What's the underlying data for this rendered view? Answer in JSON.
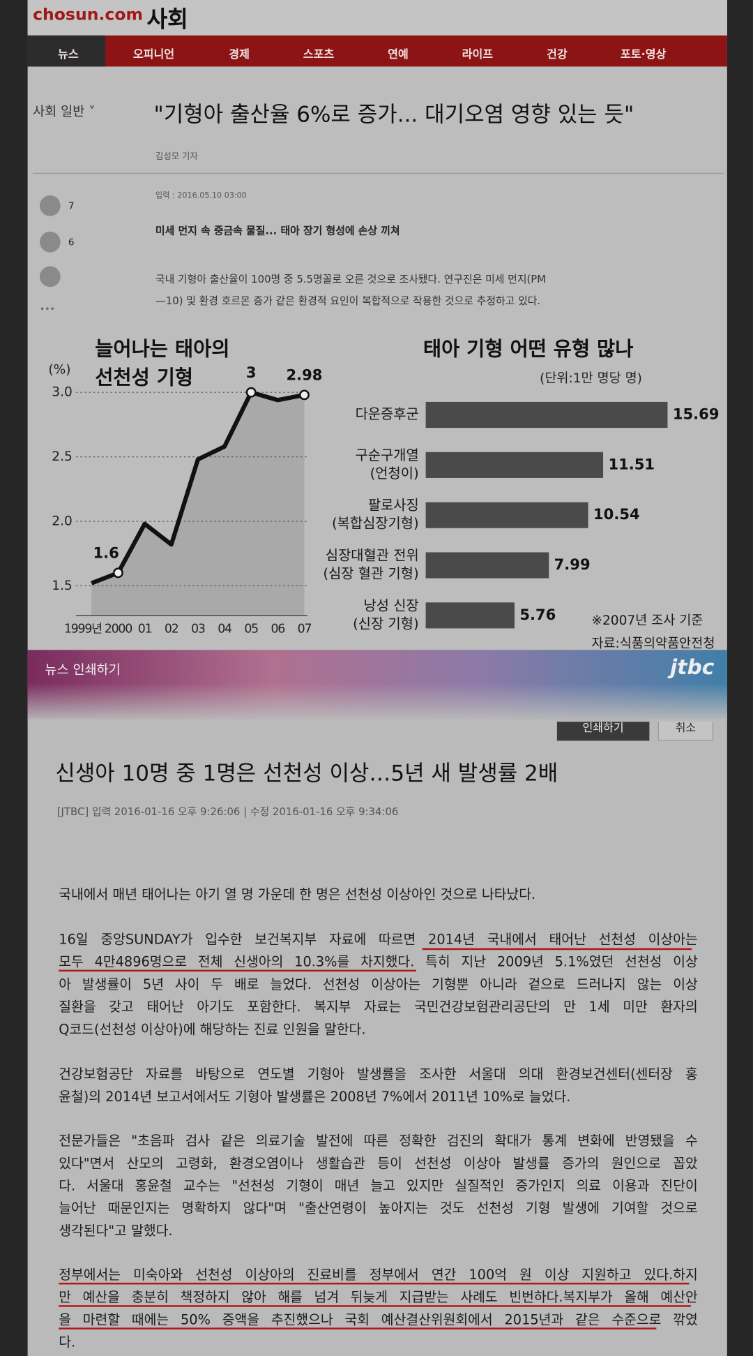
{
  "chosun": {
    "logo": "chosun.com",
    "section": "사회",
    "nav": [
      "뉴스",
      "오피니언",
      "경제",
      "스포츠",
      "연예",
      "라이프",
      "건강",
      "포토·영상"
    ],
    "category": "사회 일반 ˅",
    "headline": "\"기형아 출산율 6%로 증가... 대기오염 영향 있는 듯\"",
    "byline": "김성모 기자",
    "date": "입력 : 2016.05.10 03:00",
    "share_counts": [
      "7",
      "6"
    ],
    "more": "•••",
    "subhead": "미세 먼지 속 중금속 물질... 태아 장기 형성에 손상 끼쳐",
    "body": [
      "국내 기형아 출산율이 100명 중 5.5명꼴로 오른 것으로 조사됐다. 연구진은 미세 먼지(PM",
      "—10) 및 환경 호르몬 증가 같은 환경적 요인이 복합적으로 작용한 것으로 추정하고 있다."
    ]
  },
  "chart_data": [
    {
      "type": "line",
      "title": [
        "늘어나는 태아의",
        "선천성 기형"
      ],
      "y_label": "(%)",
      "categories": [
        "1999년",
        "2000",
        "01",
        "02",
        "03",
        "04",
        "05",
        "06",
        "07"
      ],
      "values": [
        1.52,
        1.6,
        1.98,
        1.82,
        2.48,
        2.58,
        3,
        2.94,
        2.98
      ],
      "value_labels": [
        null,
        "1.6",
        null,
        null,
        null,
        null,
        "3",
        null,
        "2.98"
      ],
      "ylim": [
        1.27,
        3.1
      ],
      "yticks": [
        {
          "value": 3,
          "label": "3.0"
        },
        2.5,
        {
          "value": 2,
          "label": "2.0"
        },
        1.5
      ],
      "grid": true,
      "color": "#111111"
    },
    {
      "type": "hbar",
      "title": "태아 기형 어떤 유형 많나",
      "subtitle": "(단위:1만 명당 명)",
      "categories": [
        [
          "다운증후군"
        ],
        [
          "구순구개열",
          "(언청이)"
        ],
        [
          "팔로사징",
          "(복합심장기형)"
        ],
        [
          "심장대혈관 전위",
          "(심장 혈관 기형)"
        ],
        [
          "낭성 신장",
          "(신장 기형)"
        ]
      ],
      "values": [
        15.69,
        11.51,
        10.54,
        7.99,
        5.76
      ],
      "color": "#4a4a4a",
      "notes": [
        "※2007년 조사 기준",
        "자료:식품의약품안전청"
      ]
    }
  ],
  "jtbc": {
    "bar_title": "뉴스 인쇄하기",
    "logo": "jtbc",
    "buttons": [
      "인쇄하기",
      "취소"
    ],
    "headline": "신생아 10명 중 1명은 선천성 이상…5년 새 발생률 2배",
    "meta": "[JTBC] 입력 2016-01-16 오후 9:26:06 | 수정 2016-01-16 오후 9:34:06",
    "paragraphs": [
      [
        "국내에서 매년 태어나는 아기 열 명 가운데 한 명은 선천성 이상아인 것으로 나타났다."
      ],
      [
        "16일 중앙SUNDAY가 입수한 보건복지부 자료에 따르면 2014년 국내에서 태어난 선천성 이상아는",
        "모두 4만4896명으로 전체 신생아의 10.3%를 차지했다. 특히 지난 2009년 5.1%였던 선천성 이상",
        "아 발생률이 5년 사이 두 배로 늘었다. 선천성 이상아는 기형뿐 아니라 겉으로 드러나지 않는 이상",
        "질환을 갖고 태어난 아기도 포함한다. 복지부 자료는 국민건강보험관리공단의 만 1세 미만 환자의",
        "Q코드(선천성 이상아)에 해당하는 진료 인원을 말한다."
      ],
      [
        "건강보험공단 자료를 바탕으로 연도별 기형아 발생률을 조사한 서울대 의대 환경보건센터(센터장 홍",
        "윤철)의 2014년 보고서에서도 기형아 발생률은 2008년 7%에서 2011년 10%로 늘었다."
      ],
      [
        "전문가들은 \"초음파 검사 같은 의료기술 발전에 따른 정확한 검진의 확대가 통계 변화에 반영됐을 수",
        "있다\"면서 산모의 고령화, 환경오염이나 생활습관 등이 선천성 이상아 발생률 증가의 원인으로 꼽았",
        "다. 서울대 홍윤철 교수는 \"선천성 기형이 매년 늘고 있지만 실질적인 증가인지 의료 이용과 진단이",
        "늘어난 때문인지는 명확하지 않다\"며 \"출산연령이 높아지는 것도 선천성 기형 발생에 기여할 것으로",
        "생각된다\"고 말했다."
      ],
      [
        "정부에서는 미숙아와 선천성 이상아의 진료비를 정부에서 연간 100억 원 이상 지원하고 있다.하지",
        "만 예산을 충분히 책정하지 않아 해를 넘겨 뒤늦게 지급받는 사례도 빈번하다.복지부가 올해 예산안",
        "을 마련할 때에는 50% 증액을 추진했으나 국회 예산결산위원회에서 2015년과 같은 수준으로 깎였",
        "다."
      ]
    ]
  }
}
